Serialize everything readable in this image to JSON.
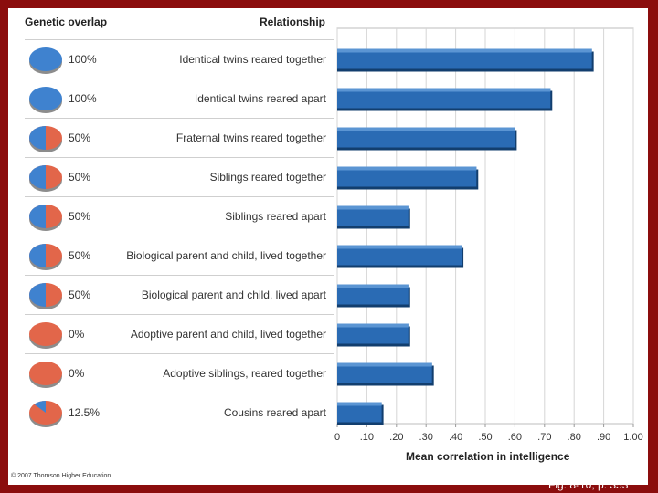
{
  "headers": {
    "overlap": "Genetic overlap",
    "relationship": "Relationship"
  },
  "chart_data": {
    "type": "bar",
    "orientation": "horizontal",
    "title": "",
    "xlabel": "Mean correlation in intelligence",
    "ylabel": "Relationship",
    "xlim": [
      0,
      1.0
    ],
    "x_ticks": [
      0,
      0.1,
      0.2,
      0.3,
      0.4,
      0.5,
      0.6,
      0.7,
      0.8,
      0.9,
      1.0
    ],
    "x_tick_labels": [
      "0",
      ".10",
      ".20",
      ".30",
      ".40",
      ".50",
      ".60",
      ".70",
      ".80",
      ".90",
      "1.00"
    ],
    "grid": true,
    "categories": [
      "Identical twins reared together",
      "Identical twins reared apart",
      "Fraternal twins reared together",
      "Siblings reared together",
      "Siblings reared apart",
      "Biological parent and child, lived together",
      "Biological parent and child, lived apart",
      "Adoptive parent and child, lived together",
      "Adoptive siblings, reared together",
      "Cousins reared apart"
    ],
    "genetic_overlap_labels": [
      "100%",
      "100%",
      "50%",
      "50%",
      "50%",
      "50%",
      "50%",
      "0%",
      "0%",
      "12.5%"
    ],
    "genetic_overlap_values": [
      100,
      100,
      50,
      50,
      50,
      50,
      50,
      0,
      0,
      12.5
    ],
    "values": [
      0.86,
      0.72,
      0.6,
      0.47,
      0.24,
      0.42,
      0.24,
      0.24,
      0.32,
      0.15
    ],
    "colors": {
      "bar": "#2a6bb4",
      "bar_top": "#5b95d3",
      "bar_shadow": "#123e6e",
      "pie_shared": "#3f82cf",
      "pie_unshared": "#e2664a"
    }
  },
  "copyright": "© 2007 Thomson Higher Education",
  "figure_ref": "Fig. 8-10, p. 353"
}
